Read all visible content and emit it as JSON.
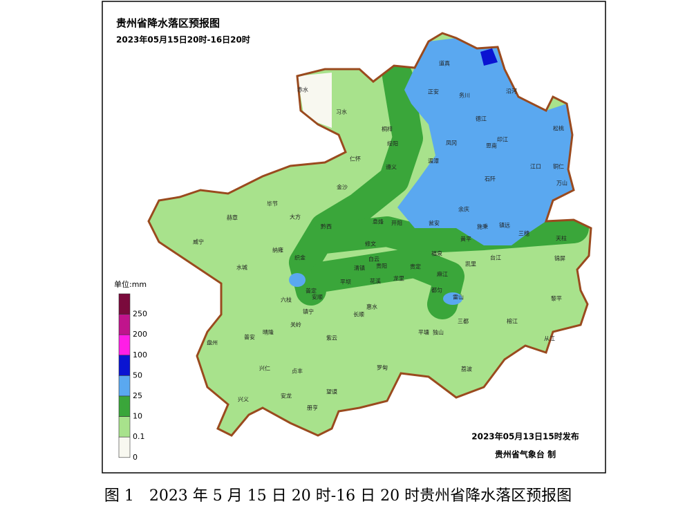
{
  "title": "贵州省降水落区预报图",
  "subtitle": "2023年05月15日20时-16日20时",
  "legend": {
    "unit": "单位:mm",
    "labels": [
      250,
      200,
      100,
      50,
      25,
      10,
      0.1,
      0
    ],
    "colors": [
      "#7a0a3c",
      "#c0148c",
      "#ff1ee6",
      "#0a14d2",
      "#5aa8f0",
      "#3aa63a",
      "#a8e28c",
      "#f8f8f0"
    ]
  },
  "places": [
    "赤水",
    "习水",
    "道真",
    "正安",
    "务川",
    "沿河",
    "桐梓",
    "德江",
    "松桃",
    "绥阳",
    "凤冈",
    "印江",
    "思南",
    "仁怀",
    "湄潭",
    "遵义",
    "江口",
    "铜仁",
    "石阡",
    "万山",
    "金沙",
    "毕节",
    "赫章",
    "大方",
    "余庆",
    "黔西",
    "息烽",
    "开阳",
    "瓮安",
    "施秉",
    "镇远",
    "三穗",
    "天柱",
    "威宁",
    "纳雍",
    "修文",
    "黄平",
    "织金",
    "白云",
    "福泉",
    "台江",
    "锦屏",
    "水城",
    "清镇",
    "贵阳",
    "贵定",
    "凯里",
    "龙里",
    "麻江",
    "平坝",
    "花溪",
    "六枝",
    "普定",
    "安顺",
    "惠水",
    "都匀",
    "雷山",
    "黎平",
    "镇宁",
    "长顺",
    "三都",
    "榕江",
    "关岭",
    "平塘",
    "独山",
    "从江",
    "盘州",
    "普安",
    "晴隆",
    "紫云",
    "兴仁",
    "贞丰",
    "罗甸",
    "荔波",
    "望谟",
    "兴义",
    "安龙",
    "册亨"
  ],
  "footer": {
    "issued": "2023年05月13日15时发布",
    "maker": "贵州省气象台 制"
  },
  "caption": "图 1　2023 年 5 月 15 日 20 时-16 日 20 时贵州省降水落区预报图"
}
